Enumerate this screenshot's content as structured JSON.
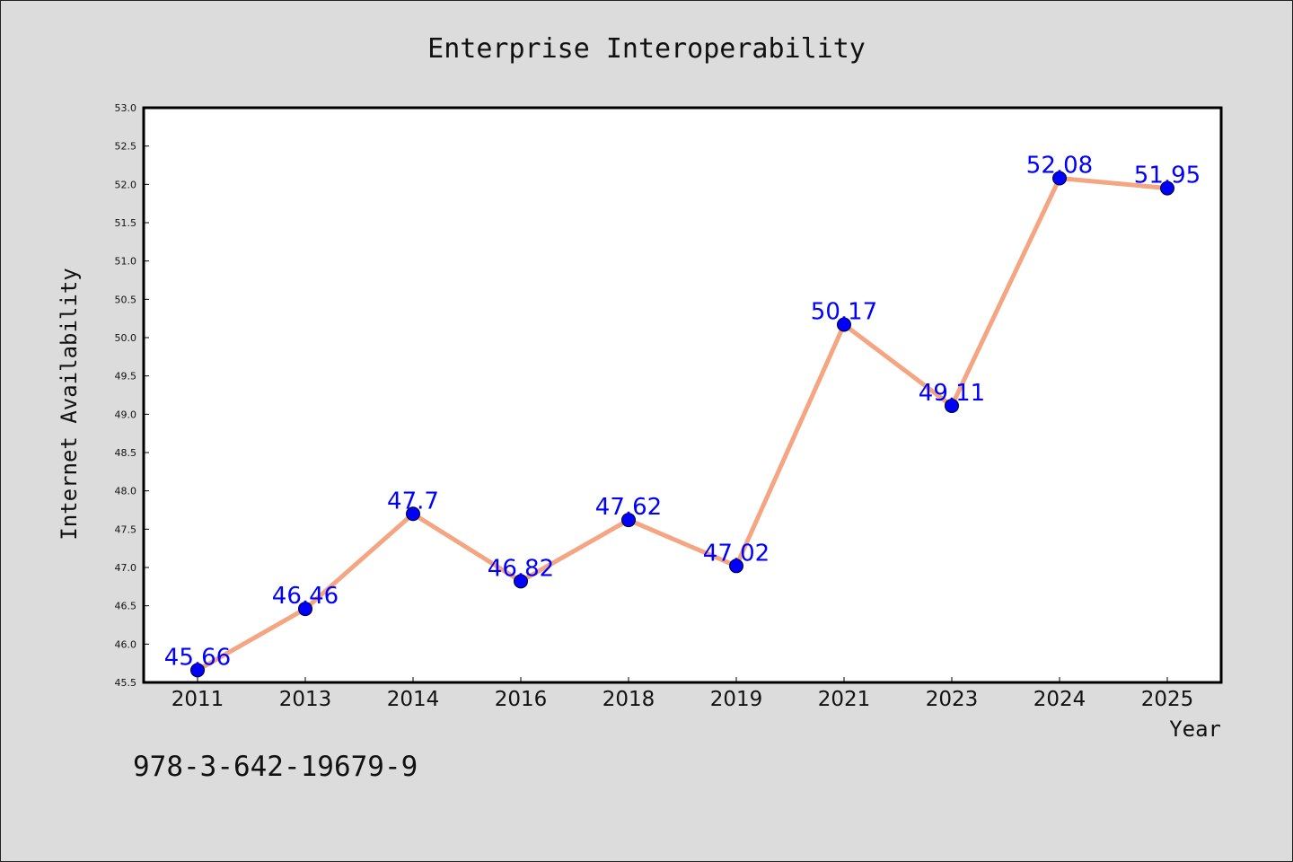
{
  "chart_data": {
    "type": "line",
    "title": "Enterprise Interoperability",
    "xlabel": "Year",
    "ylabel": "Internet Availability",
    "categories": [
      "2011",
      "2013",
      "2014",
      "2016",
      "2018",
      "2019",
      "2021",
      "2023",
      "2024",
      "2025"
    ],
    "values": [
      45.66,
      46.46,
      47.7,
      46.82,
      47.62,
      47.02,
      50.17,
      49.11,
      52.08,
      51.95
    ],
    "data_labels": [
      "45.66",
      "46.46",
      "47.7",
      "46.82",
      "47.62",
      "47.02",
      "50.17",
      "49.11",
      "52.08",
      "51.95"
    ],
    "ylim": [
      45.5,
      53.0
    ],
    "yticks": [
      "45.5",
      "46.0",
      "46.5",
      "47.0",
      "47.5",
      "48.0",
      "48.5",
      "49.0",
      "49.5",
      "50.0",
      "50.5",
      "51.0",
      "51.5",
      "52.0",
      "52.5",
      "53.0"
    ],
    "grid": false,
    "legend": "none",
    "line_color": "#f4a582",
    "marker_color": "#0000ff",
    "label_color": "#0000ff"
  },
  "footer": {
    "isbn": "978-3-642-19679-9"
  }
}
